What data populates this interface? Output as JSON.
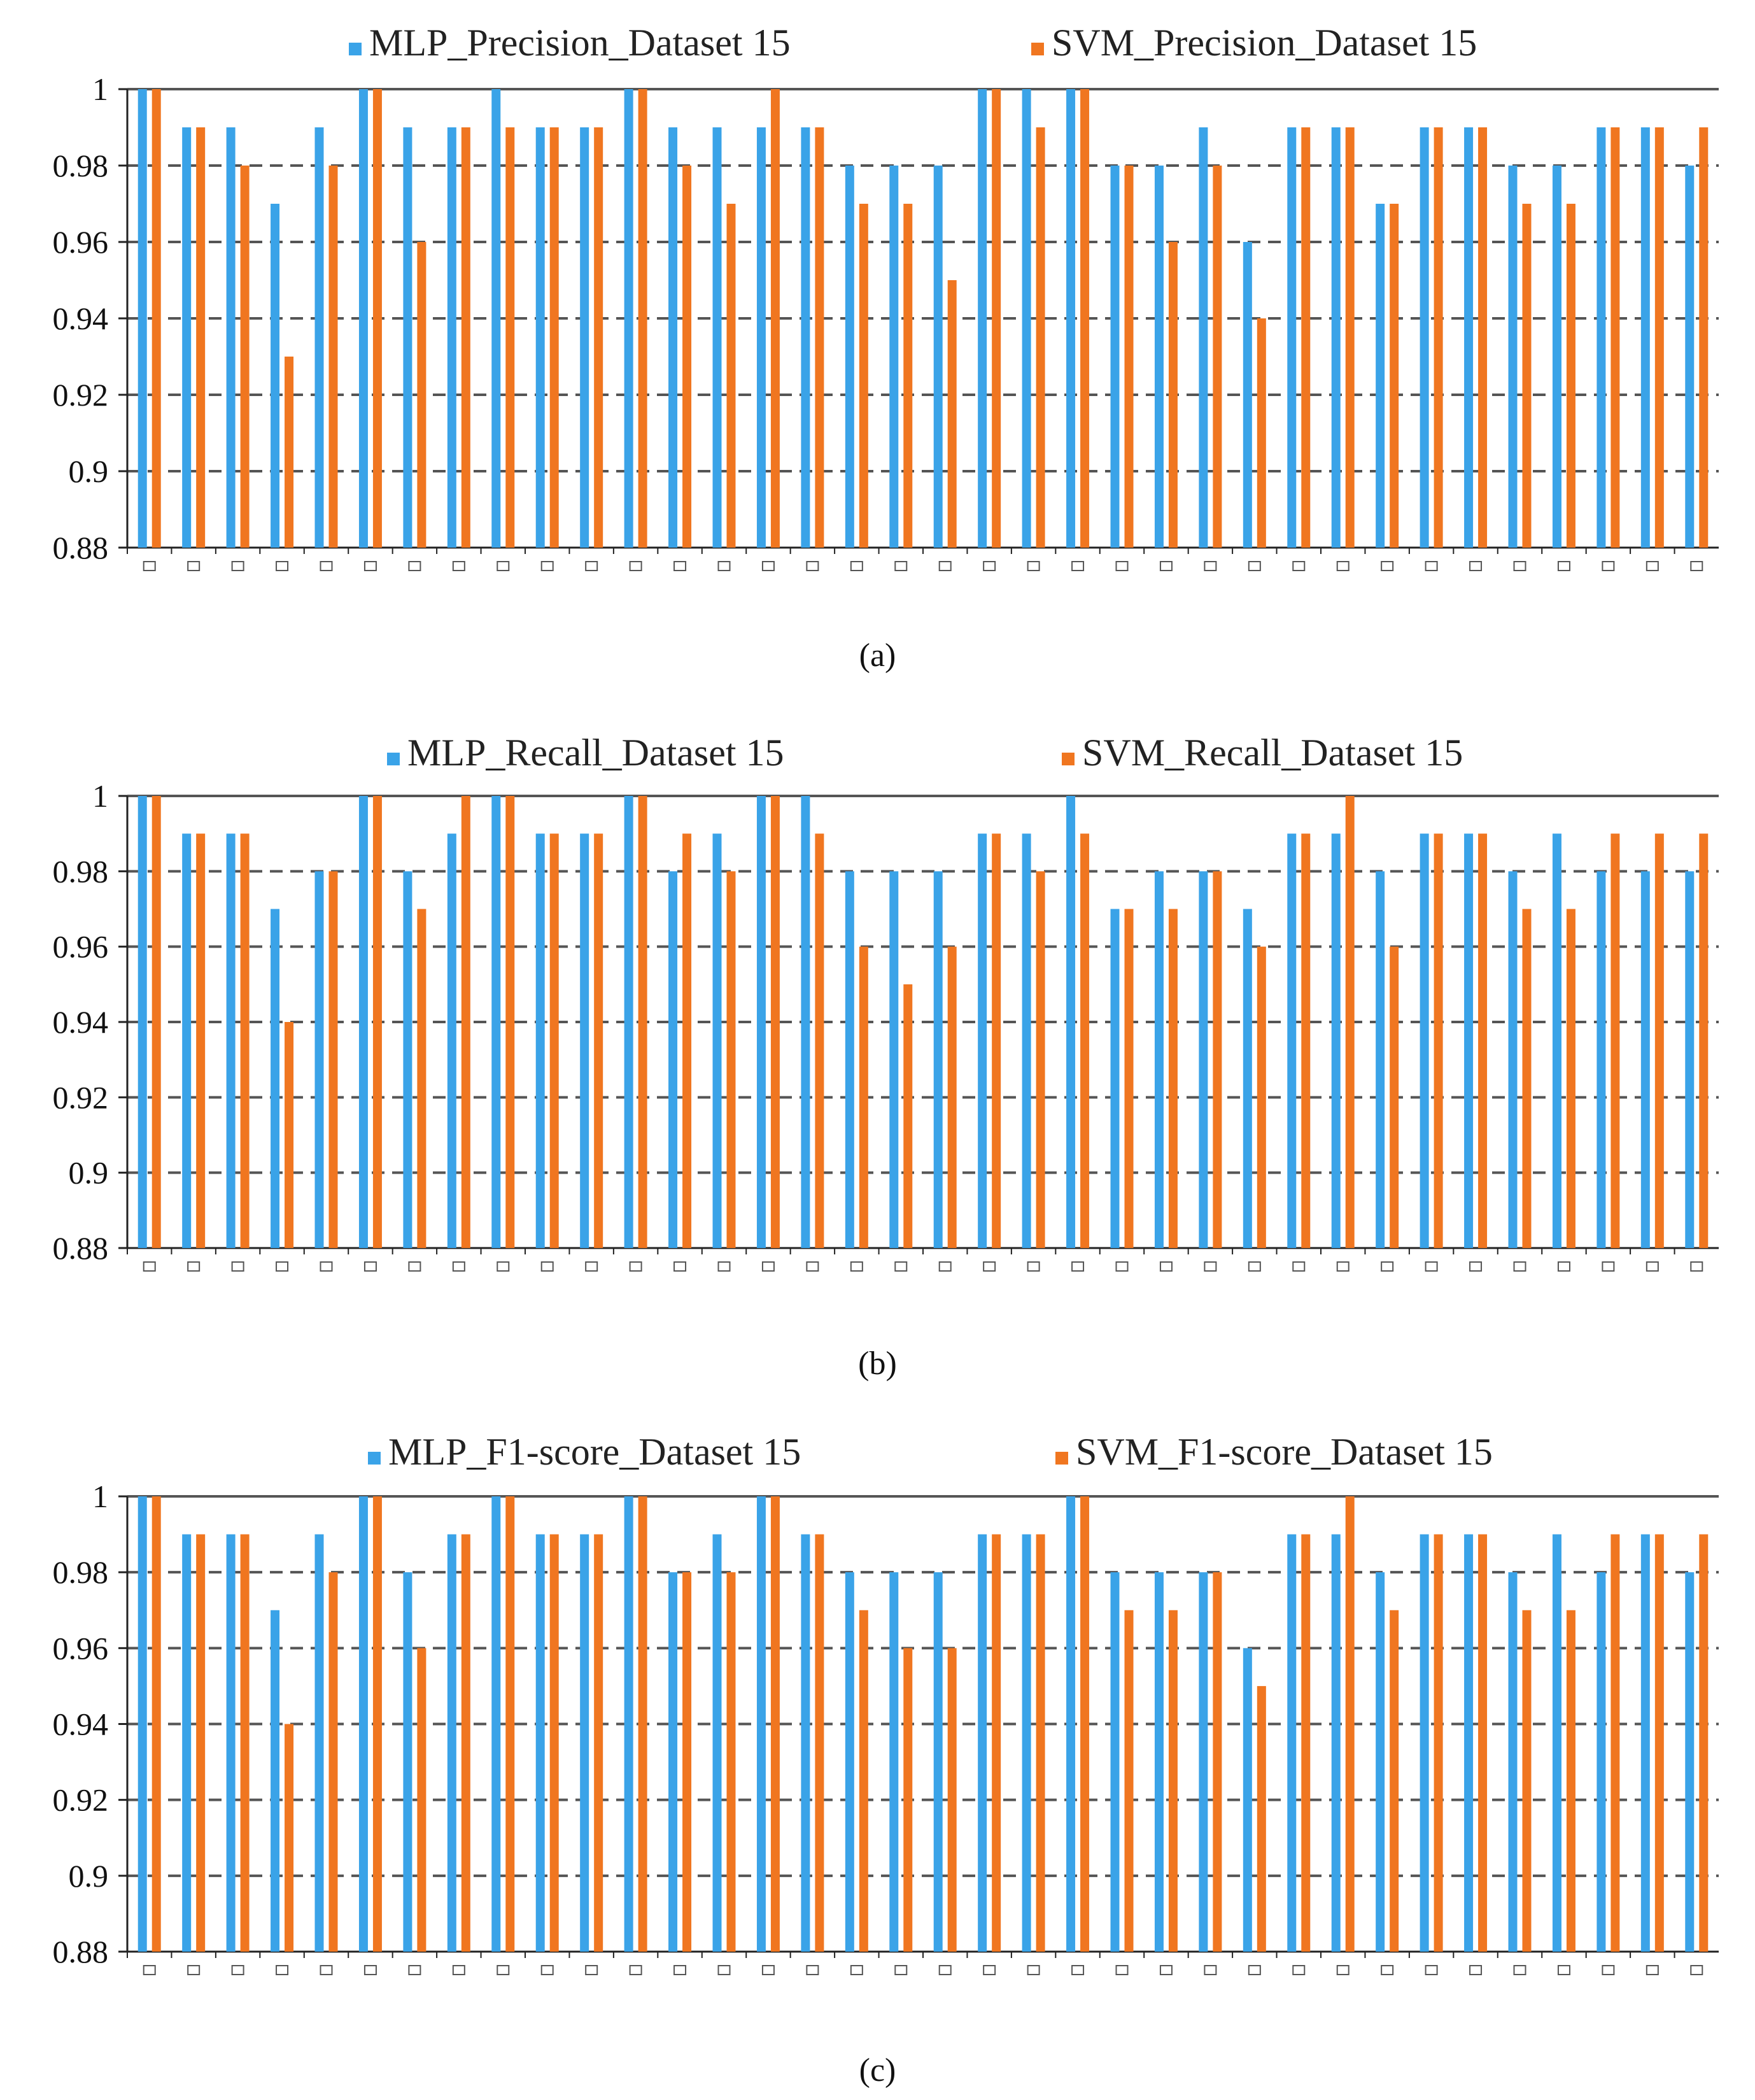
{
  "colors": {
    "mlp": "#3aa3e8",
    "svm": "#f07620",
    "grid": "#555555",
    "axis": "#222222"
  },
  "chart_data": [
    {
      "type": "bar",
      "caption": "(a)",
      "legend_position": "top-center",
      "series": [
        {
          "name": "MLP_Precision_Dataset 15",
          "values": [
            1,
            0.99,
            0.99,
            0.97,
            0.99,
            1,
            0.99,
            0.99,
            1,
            0.99,
            0.99,
            1,
            0.99,
            0.99,
            0.99,
            0.99,
            0.98,
            0.98,
            0.98,
            1,
            1,
            1,
            0.98,
            0.98,
            0.99,
            0.96,
            0.99,
            0.99,
            0.97,
            0.99,
            0.99,
            0.98,
            0.98,
            0.99,
            0.99,
            0.98
          ]
        },
        {
          "name": "SVM_Precision_Dataset 15",
          "values": [
            1,
            0.99,
            0.98,
            0.93,
            0.98,
            1,
            0.96,
            0.99,
            0.99,
            0.99,
            0.99,
            1,
            0.98,
            0.97,
            1,
            0.99,
            0.97,
            0.97,
            0.95,
            1,
            0.99,
            1,
            0.98,
            0.96,
            0.98,
            0.94,
            0.99,
            0.99,
            0.97,
            0.99,
            0.99,
            0.97,
            0.97,
            0.99,
            0.99,
            0.99
          ]
        }
      ],
      "ylim": [
        0.88,
        1
      ],
      "yticks": [
        "0.88",
        "0.9",
        "0.92",
        "0.94",
        "0.96",
        "0.98",
        "1"
      ],
      "grid": "dashed",
      "xlabel": "",
      "ylabel": ""
    },
    {
      "type": "bar",
      "caption": "(b)",
      "legend_position": "top-center",
      "series": [
        {
          "name": "MLP_Recall_Dataset 15",
          "values": [
            1,
            0.99,
            0.99,
            0.97,
            0.98,
            1,
            0.98,
            0.99,
            1,
            0.99,
            0.99,
            1,
            0.98,
            0.99,
            1,
            1,
            0.98,
            0.98,
            0.98,
            0.99,
            0.99,
            1,
            0.97,
            0.98,
            0.98,
            0.97,
            0.99,
            0.99,
            0.98,
            0.99,
            0.99,
            0.98,
            0.99,
            0.98,
            0.98,
            0.98
          ]
        },
        {
          "name": "SVM_Recall_Dataset 15",
          "values": [
            1,
            0.99,
            0.99,
            0.94,
            0.98,
            1,
            0.97,
            1,
            1,
            0.99,
            0.99,
            1,
            0.99,
            0.98,
            1,
            0.99,
            0.96,
            0.95,
            0.96,
            0.99,
            0.98,
            0.99,
            0.97,
            0.97,
            0.98,
            0.96,
            0.99,
            1,
            0.96,
            0.99,
            0.99,
            0.97,
            0.97,
            0.99,
            0.99,
            0.99
          ]
        }
      ],
      "ylim": [
        0.88,
        1
      ],
      "yticks": [
        "0.88",
        "0.9",
        "0.92",
        "0.94",
        "0.96",
        "0.98",
        "1"
      ],
      "grid": "dashed",
      "xlabel": "",
      "ylabel": ""
    },
    {
      "type": "bar",
      "caption": "(c)",
      "legend_position": "top-center",
      "series": [
        {
          "name": "MLP_F1-score_Dataset 15",
          "values": [
            1,
            0.99,
            0.99,
            0.97,
            0.99,
            1,
            0.98,
            0.99,
            1,
            0.99,
            0.99,
            1,
            0.98,
            0.99,
            1,
            0.99,
            0.98,
            0.98,
            0.98,
            0.99,
            0.99,
            1,
            0.98,
            0.98,
            0.98,
            0.96,
            0.99,
            0.99,
            0.98,
            0.99,
            0.99,
            0.98,
            0.99,
            0.98,
            0.99,
            0.98
          ]
        },
        {
          "name": "SVM_F1-score_Dataset 15",
          "values": [
            1,
            0.99,
            0.99,
            0.94,
            0.98,
            1,
            0.96,
            0.99,
            1,
            0.99,
            0.99,
            1,
            0.98,
            0.98,
            1,
            0.99,
            0.97,
            0.96,
            0.96,
            0.99,
            0.99,
            1,
            0.97,
            0.97,
            0.98,
            0.95,
            0.99,
            1,
            0.97,
            0.99,
            0.99,
            0.97,
            0.97,
            0.99,
            0.99,
            0.99
          ]
        }
      ],
      "ylim": [
        0.88,
        1
      ],
      "yticks": [
        "0.88",
        "0.9",
        "0.92",
        "0.94",
        "0.96",
        "0.98",
        "1"
      ],
      "grid": "dashed",
      "xlabel": "",
      "ylabel": ""
    }
  ]
}
